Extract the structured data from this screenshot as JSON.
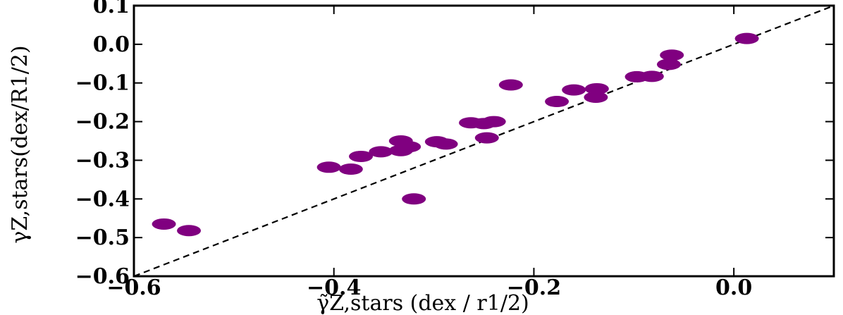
{
  "chart_data": {
    "type": "scatter",
    "title": "",
    "xlabel": "γ̃Z,stars (dex / r1/2)",
    "ylabel": "γZ,stars(dex/R1/2)",
    "xlim": [
      -0.6,
      0.1
    ],
    "ylim": [
      -0.6,
      0.1
    ],
    "x_ticks": [
      -0.6,
      -0.4,
      -0.2,
      0.0
    ],
    "x_tick_labels": [
      "−0.6",
      "−0.4",
      "−0.2",
      "0.0"
    ],
    "y_ticks": [
      0.1,
      0.0,
      -0.1,
      -0.2,
      -0.3,
      -0.4,
      -0.5,
      -0.6
    ],
    "y_tick_labels": [
      "0.1",
      "0.0",
      "−0.1",
      "−0.2",
      "−0.3",
      "−0.4",
      "−0.5",
      "−0.6"
    ],
    "grid": false,
    "marker_color": "#800080",
    "reference_line": {
      "style": "dashed",
      "color": "#000000",
      "points": [
        [
          -0.6,
          -0.6
        ],
        [
          0.1,
          0.1
        ]
      ]
    },
    "series": [
      {
        "points": [
          {
            "x": 0.013,
            "y": 0.015
          },
          {
            "x": -0.062,
            "y": -0.028
          },
          {
            "x": -0.065,
            "y": -0.052
          },
          {
            "x": -0.082,
            "y": -0.083
          },
          {
            "x": -0.097,
            "y": -0.084
          },
          {
            "x": -0.137,
            "y": -0.115
          },
          {
            "x": -0.138,
            "y": -0.137
          },
          {
            "x": -0.16,
            "y": -0.118
          },
          {
            "x": -0.177,
            "y": -0.148
          },
          {
            "x": -0.223,
            "y": -0.105
          },
          {
            "x": -0.24,
            "y": -0.2
          },
          {
            "x": -0.25,
            "y": -0.205
          },
          {
            "x": -0.263,
            "y": -0.203
          },
          {
            "x": -0.247,
            "y": -0.242
          },
          {
            "x": -0.288,
            "y": -0.258
          },
          {
            "x": -0.297,
            "y": -0.252
          },
          {
            "x": -0.32,
            "y": -0.4
          },
          {
            "x": -0.325,
            "y": -0.265
          },
          {
            "x": -0.333,
            "y": -0.25
          },
          {
            "x": -0.333,
            "y": -0.275
          },
          {
            "x": -0.353,
            "y": -0.278
          },
          {
            "x": -0.373,
            "y": -0.29
          },
          {
            "x": -0.383,
            "y": -0.323
          },
          {
            "x": -0.405,
            "y": -0.318
          },
          {
            "x": -0.545,
            "y": -0.482
          },
          {
            "x": -0.57,
            "y": -0.465
          }
        ]
      }
    ]
  }
}
